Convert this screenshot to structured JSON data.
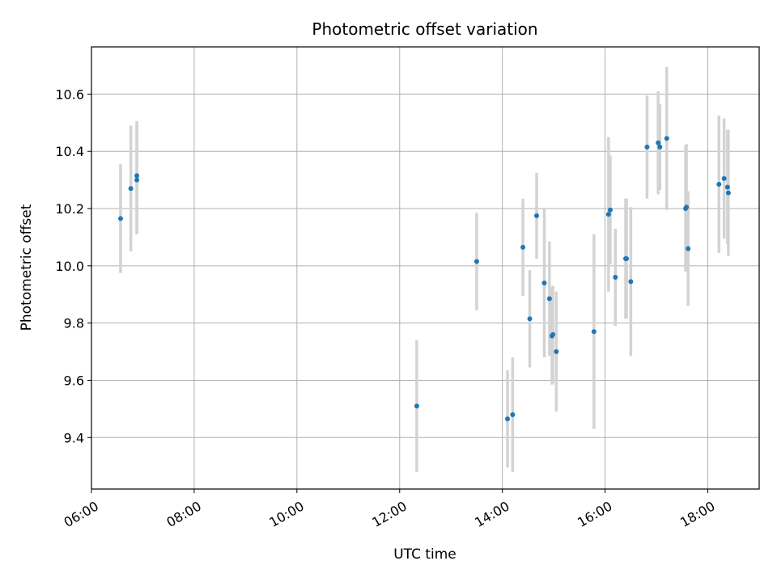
{
  "chart_data": {
    "type": "scatter",
    "title": "Photometric offset variation",
    "xlabel": "UTC time",
    "ylabel": "Photometric offset",
    "xlim": [
      "06:00",
      "19:00"
    ],
    "ylim": [
      9.22,
      10.765
    ],
    "x_ticks": [
      "06:00",
      "08:00",
      "10:00",
      "12:00",
      "14:00",
      "16:00",
      "18:00"
    ],
    "y_ticks": [
      9.4,
      9.6,
      9.8,
      10.0,
      10.2,
      10.4,
      10.6
    ],
    "grid": true,
    "colors": {
      "point": "#1f77b4",
      "errorbar": "#d3d3d3",
      "grid": "#b0b0b0"
    },
    "points": [
      {
        "x": "06:34",
        "y": 10.165,
        "err": 0.19
      },
      {
        "x": "06:46",
        "y": 10.27,
        "err": 0.22
      },
      {
        "x": "06:53",
        "y": 10.3,
        "err": 0.19
      },
      {
        "x": "06:53",
        "y": 10.315,
        "err": 0.19
      },
      {
        "x": "12:20",
        "y": 9.51,
        "err": 0.23
      },
      {
        "x": "13:30",
        "y": 10.015,
        "err": 0.17
      },
      {
        "x": "14:06",
        "y": 9.465,
        "err": 0.17
      },
      {
        "x": "14:12",
        "y": 9.48,
        "err": 0.2
      },
      {
        "x": "14:24",
        "y": 10.065,
        "err": 0.17
      },
      {
        "x": "14:32",
        "y": 9.815,
        "err": 0.17
      },
      {
        "x": "14:40",
        "y": 10.175,
        "err": 0.15
      },
      {
        "x": "14:49",
        "y": 9.94,
        "err": 0.26
      },
      {
        "x": "14:55",
        "y": 9.885,
        "err": 0.2
      },
      {
        "x": "14:58",
        "y": 9.755,
        "err": 0.17
      },
      {
        "x": "14:59",
        "y": 9.76,
        "err": 0.17
      },
      {
        "x": "15:03",
        "y": 9.7,
        "err": 0.21
      },
      {
        "x": "15:47",
        "y": 9.77,
        "err": 0.34
      },
      {
        "x": "16:04",
        "y": 10.18,
        "err": 0.27
      },
      {
        "x": "16:06",
        "y": 10.195,
        "err": 0.19
      },
      {
        "x": "16:12",
        "y": 9.96,
        "err": 0.17
      },
      {
        "x": "16:24",
        "y": 10.025,
        "err": 0.21
      },
      {
        "x": "16:25",
        "y": 10.025,
        "err": 0.21
      },
      {
        "x": "16:30",
        "y": 9.945,
        "err": 0.26
      },
      {
        "x": "16:49",
        "y": 10.415,
        "err": 0.18
      },
      {
        "x": "17:02",
        "y": 10.43,
        "err": 0.18
      },
      {
        "x": "17:04",
        "y": 10.415,
        "err": 0.15
      },
      {
        "x": "17:12",
        "y": 10.445,
        "err": 0.25
      },
      {
        "x": "17:34",
        "y": 10.2,
        "err": 0.22
      },
      {
        "x": "17:35",
        "y": 10.205,
        "err": 0.22
      },
      {
        "x": "17:37",
        "y": 10.06,
        "err": 0.2
      },
      {
        "x": "18:13",
        "y": 10.285,
        "err": 0.24
      },
      {
        "x": "18:19",
        "y": 10.305,
        "err": 0.21
      },
      {
        "x": "18:23",
        "y": 10.275,
        "err": 0.2
      },
      {
        "x": "18:24",
        "y": 10.255,
        "err": 0.22
      }
    ]
  }
}
